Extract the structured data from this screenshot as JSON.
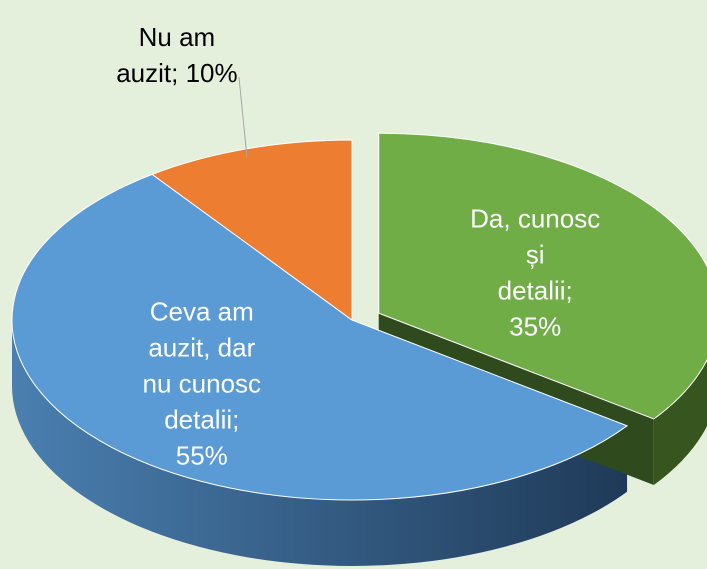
{
  "chart_data": {
    "type": "pie3d",
    "values": [
      35,
      55,
      10
    ],
    "value_labels": [
      "Da, cunosc și detalii; 35%",
      "Ceva am auzit, dar nu cunosc detalii; 55%",
      "Nu am auzit; 10%"
    ],
    "colors": [
      "#70ad47",
      "#5b9bd5",
      "#ed7d31"
    ]
  }
}
